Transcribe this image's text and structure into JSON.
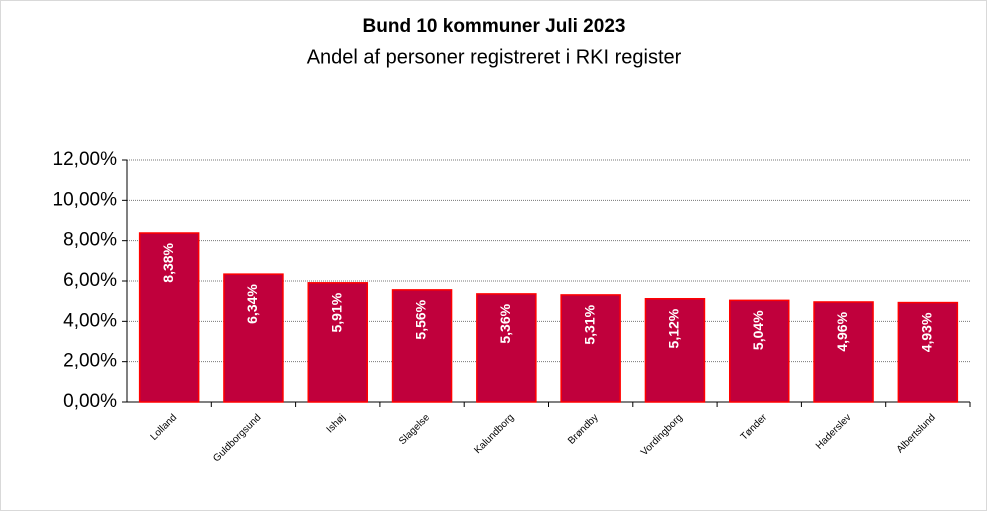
{
  "chart_data": {
    "type": "bar",
    "title": "Bund 10 kommuner Juli 2023",
    "subtitle": "Andel af personer registreret i RKI register",
    "categories": [
      "Lolland",
      "Guldborgsund",
      "Ishøj",
      "Slagelse",
      "Kalundborg",
      "Brøndby",
      "Vordingborg",
      "Tønder",
      "Haderslev",
      "Albertslund"
    ],
    "values": [
      8.38,
      6.34,
      5.91,
      5.56,
      5.36,
      5.31,
      5.12,
      5.04,
      4.96,
      4.93
    ],
    "value_labels": [
      "8,38%",
      "6,34%",
      "5,91%",
      "5,56%",
      "5,36%",
      "5,31%",
      "5,12%",
      "5,04%",
      "4,96%",
      "4,93%"
    ],
    "color": "#c0003c",
    "edge_color": "#ff0000",
    "ylim": [
      0,
      12
    ],
    "yticks": [
      {
        "value": 0,
        "label": "0,00%"
      },
      {
        "value": 2,
        "label": "2,00%"
      },
      {
        "value": 4,
        "label": "4,00%"
      },
      {
        "value": 6,
        "label": "6,00%"
      },
      {
        "value": 8,
        "label": "8,00%"
      },
      {
        "value": 10,
        "label": "10,00%"
      },
      {
        "value": 12,
        "label": "12,00%"
      }
    ],
    "grid": true
  }
}
